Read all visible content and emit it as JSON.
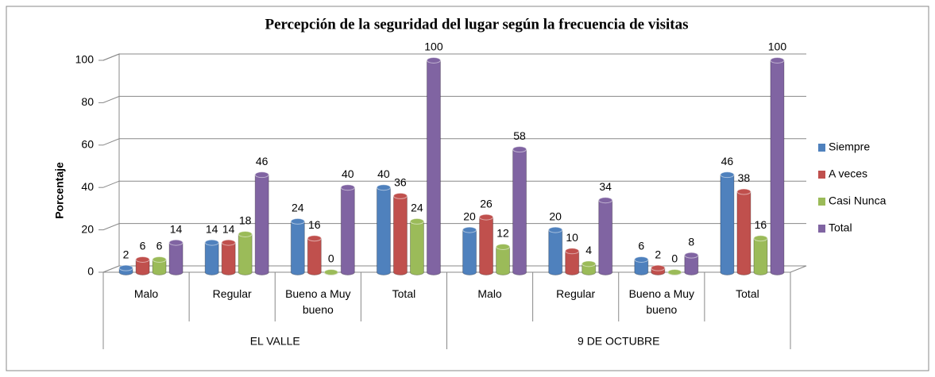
{
  "chart_data": {
    "type": "bar",
    "title": "Percepción de la seguridad del lugar según la frecuencia de visitas",
    "y_label": "Porcentaje",
    "groups": [
      {
        "label": "EL VALLE",
        "categories": [
          "Malo",
          "Regular",
          "Bueno a Muy bueno",
          "Total"
        ]
      },
      {
        "label": "9 DE OCTUBRE",
        "categories": [
          "Malo",
          "Regular",
          "Bueno a Muy bueno",
          "Total"
        ]
      }
    ],
    "series": [
      {
        "name": "Siempre",
        "color": "#4f81bd",
        "values": [
          2,
          14,
          24,
          40,
          20,
          20,
          6,
          46
        ]
      },
      {
        "name": "A veces",
        "color": "#c0504d",
        "values": [
          6,
          14,
          16,
          36,
          26,
          10,
          2,
          38
        ]
      },
      {
        "name": "Casi Nunca",
        "color": "#9bbb59",
        "values": [
          6,
          18,
          0,
          24,
          12,
          4,
          0,
          16
        ]
      },
      {
        "name": "Total",
        "color": "#8064a2",
        "values": [
          14,
          46,
          40,
          100,
          58,
          34,
          8,
          100
        ]
      }
    ],
    "ylim": [
      0,
      100
    ],
    "yticks": [
      0,
      20,
      40,
      60,
      80,
      100
    ],
    "grid": true,
    "legend": "right"
  }
}
